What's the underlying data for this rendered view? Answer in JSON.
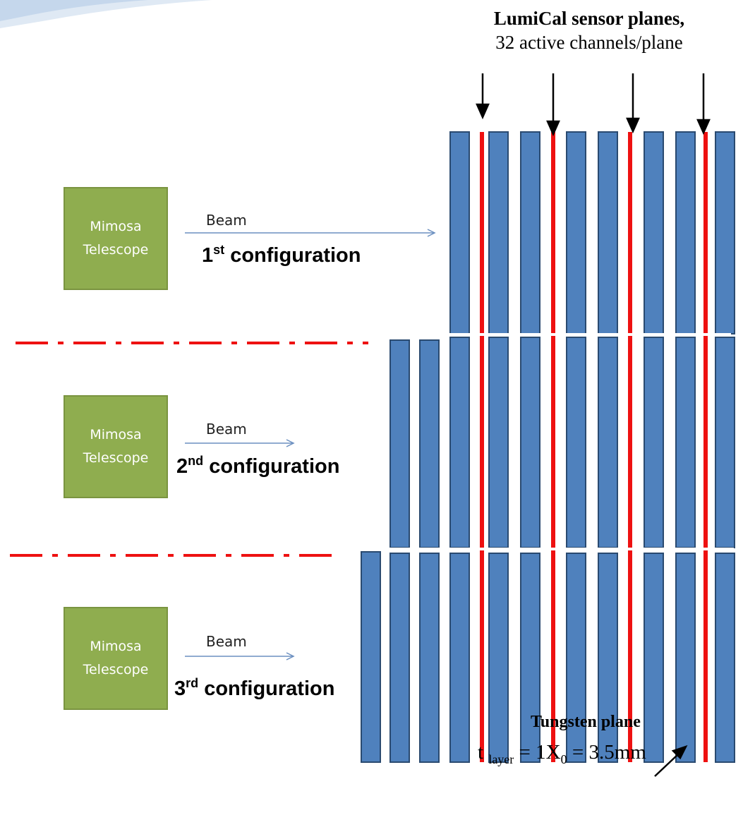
{
  "header": {
    "title": "LumiCal sensor planes,",
    "subtitle": "32 active channels/plane"
  },
  "configurations": [
    {
      "telescope_line1": "Mimosa",
      "telescope_line2": "Telescope",
      "beam_label": "Beam",
      "ordinal_number": "1",
      "ordinal_suffix": "st",
      "label_rest": " configuration"
    },
    {
      "telescope_line1": "Mimosa",
      "telescope_line2": "Telescope",
      "beam_label": "Beam",
      "ordinal_number": "2",
      "ordinal_suffix": "nd",
      "label_rest": " configuration"
    },
    {
      "telescope_line1": "Mimosa",
      "telescope_line2": "Telescope",
      "beam_label": "Beam",
      "ordinal_number": "3",
      "ordinal_suffix": "rd",
      "label_rest": " configuration"
    }
  ],
  "footer": {
    "title": "Tungsten plane",
    "formula_t": "t",
    "formula_sub": "layer",
    "formula_mid": " = 1X",
    "formula_sub0": "0",
    "formula_end": " = 3.5mm"
  },
  "colors": {
    "tungsten_plate": "#4f81bd",
    "tungsten_outline": "#2a4a70",
    "sensor_plane": "#ee1111",
    "telescope": "#8fad4f",
    "separator": "#ee1111"
  }
}
